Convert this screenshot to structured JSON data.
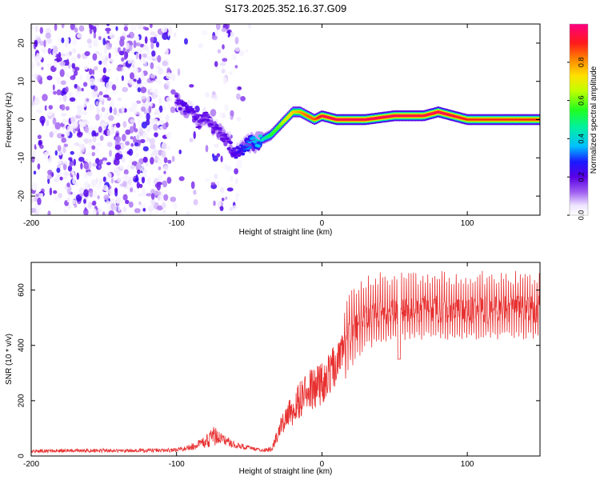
{
  "figure_title": "S173.2025.352.16.37.G09",
  "chart_data": [
    {
      "type": "heatmap",
      "title": "S173.2025.352.16.37.G09",
      "xlabel": "Height of straight line (km)",
      "ylabel": "Frequency (Hz)",
      "xlim": [
        -200,
        150
      ],
      "ylim": [
        -25,
        25
      ],
      "x_ticks": [
        -200,
        -100,
        0,
        100
      ],
      "y_ticks": [
        -20,
        -10,
        0,
        10,
        20
      ],
      "colorbar": {
        "label": "Normalized spectral amplitude",
        "range": [
          0,
          1
        ],
        "ticks": [
          0.0,
          0.2,
          0.4,
          0.6,
          0.8
        ]
      },
      "ridge": {
        "description": "frequency of main spectral peak vs height",
        "x": [
          -100,
          -95,
          -90,
          -85,
          -80,
          -75,
          -70,
          -65,
          -60,
          -55,
          -50,
          -45,
          -40,
          -35,
          -30,
          -25,
          -20,
          -15,
          -10,
          -5,
          0,
          10,
          30,
          50,
          70,
          80,
          90,
          100,
          120,
          150
        ],
        "y": [
          5,
          3,
          2,
          -1,
          1,
          -2,
          -3,
          -6,
          -9,
          -8,
          -6,
          -6,
          -5,
          -4,
          -2,
          0,
          2,
          2,
          1,
          0,
          1,
          0,
          0,
          1,
          1,
          2,
          1,
          0,
          0,
          0
        ],
        "amplitude": [
          0.2,
          0.22,
          0.22,
          0.2,
          0.2,
          0.2,
          0.2,
          0.2,
          0.24,
          0.28,
          0.35,
          0.4,
          0.45,
          0.55,
          0.6,
          0.7,
          0.75,
          0.8,
          0.85,
          0.85,
          0.95,
          0.97,
          0.97,
          0.97,
          0.95,
          0.97,
          0.95,
          0.9,
          0.9,
          0.9
        ]
      },
      "noise_region_x": [
        -200,
        -40
      ],
      "noise_amplitude_range": [
        0.02,
        0.15
      ]
    },
    {
      "type": "line",
      "xlabel": "Height of straight line (km)",
      "ylabel": "SNR (10 * v/v)",
      "xlim": [
        -200,
        150
      ],
      "ylim": [
        0,
        700
      ],
      "x_ticks": [
        -200,
        -100,
        0,
        100
      ],
      "y_ticks": [
        0,
        200,
        400,
        600
      ],
      "color": "#e83030",
      "series": [
        {
          "name": "SNR",
          "x": [
            -200,
            -150,
            -110,
            -100,
            -90,
            -80,
            -75,
            -70,
            -60,
            -50,
            -40,
            -35,
            -30,
            -25,
            -20,
            -15,
            -10,
            -5,
            0,
            5,
            10,
            15,
            20,
            30,
            40,
            50,
            60,
            80,
            100,
            120,
            150
          ],
          "mean": [
            18,
            20,
            20,
            22,
            30,
            50,
            75,
            65,
            40,
            30,
            20,
            25,
            80,
            140,
            170,
            210,
            230,
            250,
            270,
            300,
            330,
            390,
            450,
            500,
            520,
            520,
            530,
            530,
            530,
            530,
            530
          ],
          "spread": [
            12,
            14,
            14,
            14,
            25,
            45,
            80,
            45,
            25,
            15,
            10,
            20,
            60,
            100,
            120,
            140,
            160,
            160,
            170,
            160,
            150,
            120,
            120,
            110,
            110,
            100,
            100,
            100,
            100,
            100,
            100
          ]
        }
      ]
    }
  ]
}
